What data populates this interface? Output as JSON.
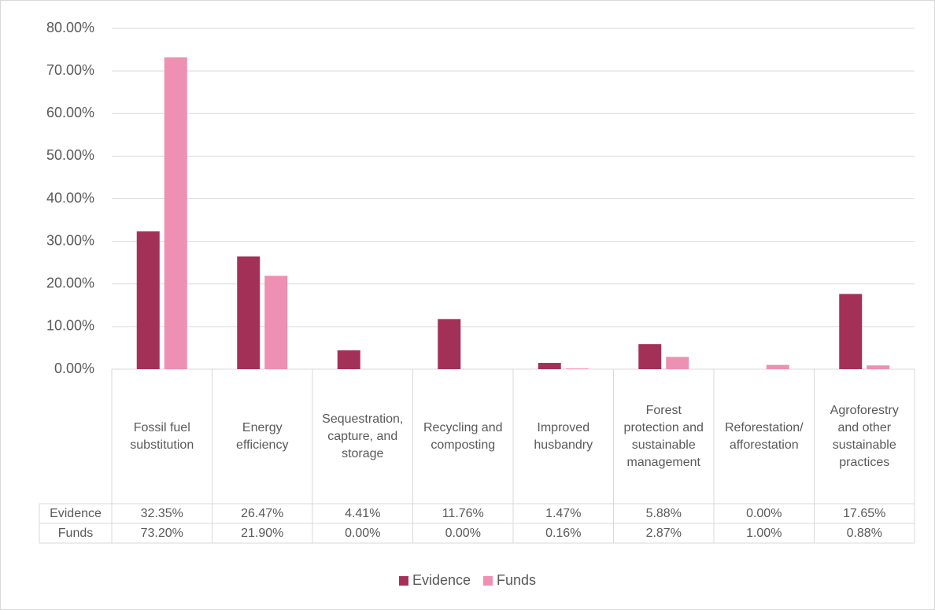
{
  "chart_data": {
    "type": "bar",
    "categories": [
      "Fossil fuel substitution",
      "Energy efficiency",
      "Sequestration, capture, and storage",
      "Recycling and composting",
      "Improved husbandry",
      "Forest protection and sustainable management",
      "Reforestation/ afforestation",
      "Agroforestry and other sustainable practices"
    ],
    "series": [
      {
        "name": "Evidence",
        "color": "#a33157",
        "values": [
          32.35,
          26.47,
          4.41,
          11.76,
          1.47,
          5.88,
          0.0,
          17.65
        ],
        "value_labels": [
          "32.35%",
          "26.47%",
          "4.41%",
          "11.76%",
          "1.47%",
          "5.88%",
          "0.00%",
          "17.65%"
        ]
      },
      {
        "name": "Funds",
        "color": "#ee90b1",
        "values": [
          73.2,
          21.9,
          0.0,
          0.0,
          0.16,
          2.87,
          1.0,
          0.88
        ],
        "value_labels": [
          "73.20%",
          "21.90%",
          "0.00%",
          "0.00%",
          "0.16%",
          "2.87%",
          "1.00%",
          "0.88%"
        ]
      }
    ],
    "ylim": [
      0,
      80
    ],
    "yticks": [
      {
        "value": 0,
        "label": "0.00%"
      },
      {
        "value": 10,
        "label": "10.00%"
      },
      {
        "value": 20,
        "label": "20.00%"
      },
      {
        "value": 30,
        "label": "30.00%"
      },
      {
        "value": 40,
        "label": "40.00%"
      },
      {
        "value": 50,
        "label": "50.00%"
      },
      {
        "value": 60,
        "label": "60.00%"
      },
      {
        "value": 70,
        "label": "70.00%"
      },
      {
        "value": 80,
        "label": "80.00%"
      }
    ],
    "grid": true,
    "legend": "bottom"
  }
}
